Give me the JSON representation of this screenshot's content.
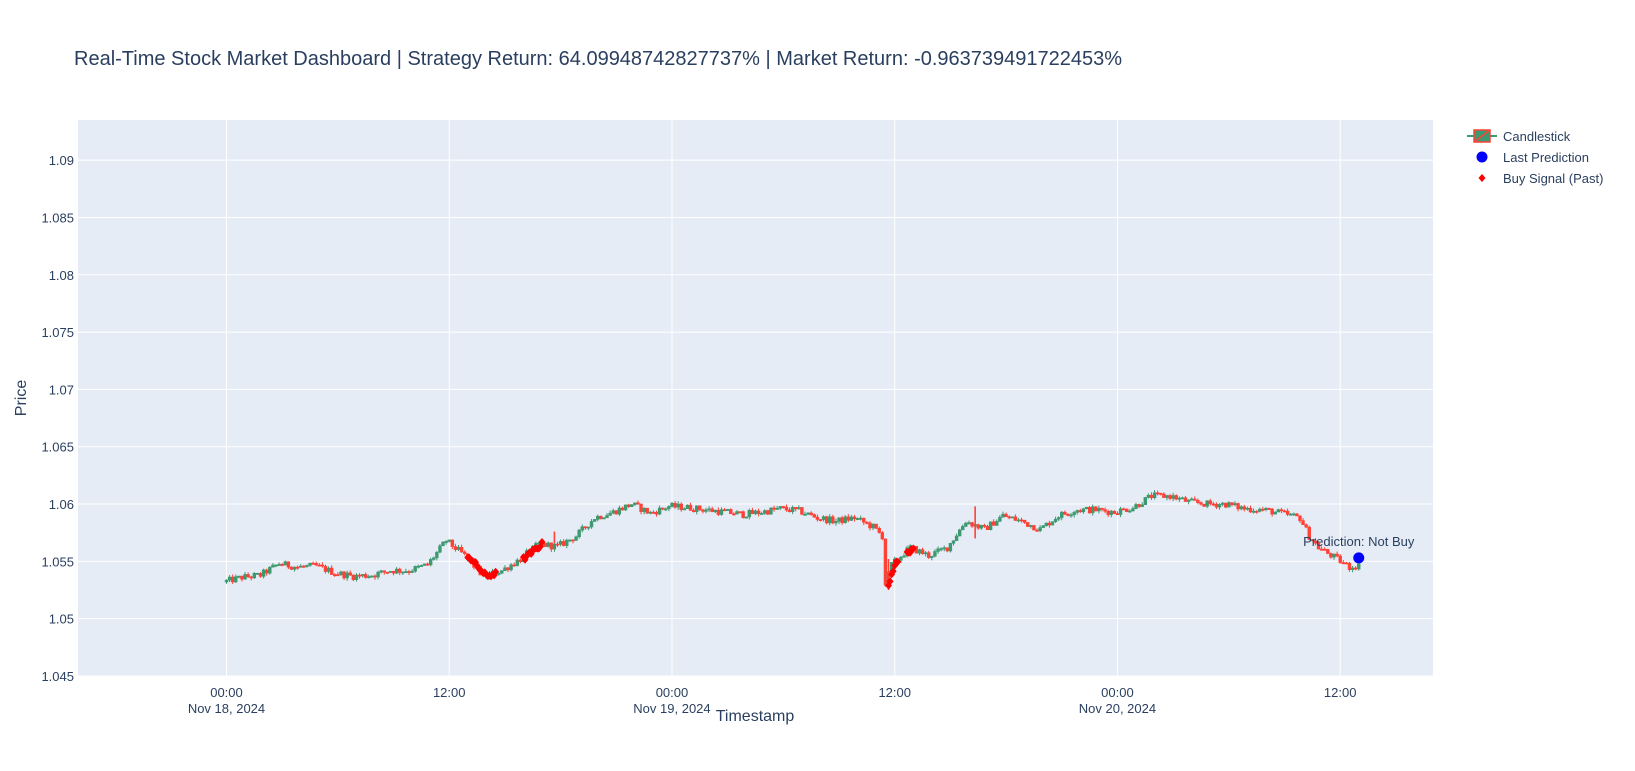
{
  "chart_data": {
    "type": "candlestick",
    "title": "Real-Time Stock Market Dashboard | Strategy Return: 64.09948742827737% | Market Return: -0.963739491722453%",
    "xlabel": "Timestamp",
    "ylabel": "Price",
    "ylim": [
      1.045,
      1.0935
    ],
    "xlim": [
      "2024-11-17 16:00",
      "2024-11-20 17:00"
    ],
    "y_ticks": [
      "1.045",
      "1.05",
      "1.055",
      "1.06",
      "1.065",
      "1.07",
      "1.075",
      "1.08",
      "1.085",
      "1.09"
    ],
    "x_ticks": [
      {
        "t": "2024-11-18 00:00",
        "time": "00:00",
        "date": "Nov 18, 2024"
      },
      {
        "t": "2024-11-18 12:00",
        "time": "12:00",
        "date": ""
      },
      {
        "t": "2024-11-19 00:00",
        "time": "00:00",
        "date": "Nov 19, 2024"
      },
      {
        "t": "2024-11-19 12:00",
        "time": "12:00",
        "date": ""
      },
      {
        "t": "2024-11-20 00:00",
        "time": "00:00",
        "date": "Nov 20, 2024"
      },
      {
        "t": "2024-11-20 12:00",
        "time": "12:00",
        "date": ""
      }
    ],
    "grid": true,
    "legend_position": "top-right",
    "colors": {
      "increasing": "#3d9970",
      "decreasing": "#ff4136",
      "prediction": "#0000ff",
      "buy_signal": "#ff0000",
      "plot_bg": "#e5ecf6"
    },
    "price_path": [
      [
        "2024-11-18 00:00",
        1.0532
      ],
      [
        "2024-11-18 01:00",
        1.0536
      ],
      [
        "2024-11-18 02:00",
        1.0538
      ],
      [
        "2024-11-18 03:00",
        1.0548
      ],
      [
        "2024-11-18 04:00",
        1.0545
      ],
      [
        "2024-11-18 05:00",
        1.0546
      ],
      [
        "2024-11-18 06:00",
        1.054
      ],
      [
        "2024-11-18 07:00",
        1.0537
      ],
      [
        "2024-11-18 08:00",
        1.0538
      ],
      [
        "2024-11-18 09:00",
        1.0542
      ],
      [
        "2024-11-18 10:00",
        1.0542
      ],
      [
        "2024-11-18 11:00",
        1.0547
      ],
      [
        "2024-11-18 12:00",
        1.0568
      ],
      [
        "2024-11-18 13:00",
        1.0555
      ],
      [
        "2024-11-18 14:00",
        1.0537
      ],
      [
        "2024-11-18 15:00",
        1.0542
      ],
      [
        "2024-11-18 16:00",
        1.0552
      ],
      [
        "2024-11-18 17:00",
        1.0565
      ],
      [
        "2024-11-18 18:00",
        1.0563
      ],
      [
        "2024-11-18 19:00",
        1.0572
      ],
      [
        "2024-11-18 20:00",
        1.0588
      ],
      [
        "2024-11-18 21:00",
        1.0593
      ],
      [
        "2024-11-18 22:00",
        1.06
      ],
      [
        "2024-11-18 23:00",
        1.0592
      ],
      [
        "2024-11-19 00:00",
        1.0598
      ],
      [
        "2024-11-19 01:00",
        1.0597
      ],
      [
        "2024-11-19 02:00",
        1.0595
      ],
      [
        "2024-11-19 03:00",
        1.0593
      ],
      [
        "2024-11-19 04:00",
        1.0591
      ],
      [
        "2024-11-19 05:00",
        1.0593
      ],
      [
        "2024-11-19 06:00",
        1.0596
      ],
      [
        "2024-11-19 07:00",
        1.0594
      ],
      [
        "2024-11-19 08:00",
        1.0588
      ],
      [
        "2024-11-19 09:00",
        1.0585
      ],
      [
        "2024-11-19 10:00",
        1.0588
      ],
      [
        "2024-11-19 11:00",
        1.058
      ],
      [
        "2024-11-19 11:30",
        1.0572
      ],
      [
        "2024-11-19 11:40",
        1.053
      ],
      [
        "2024-11-19 12:00",
        1.0547
      ],
      [
        "2024-11-19 13:00",
        1.0562
      ],
      [
        "2024-11-19 14:00",
        1.0555
      ],
      [
        "2024-11-19 15:00",
        1.0562
      ],
      [
        "2024-11-19 16:00",
        1.0585
      ],
      [
        "2024-11-19 17:00",
        1.0578
      ],
      [
        "2024-11-19 18:00",
        1.059
      ],
      [
        "2024-11-19 19:00",
        1.0585
      ],
      [
        "2024-11-19 20:00",
        1.0578
      ],
      [
        "2024-11-19 21:00",
        1.059
      ],
      [
        "2024-11-19 22:00",
        1.0595
      ],
      [
        "2024-11-19 23:00",
        1.0595
      ],
      [
        "2024-11-20 00:00",
        1.0593
      ],
      [
        "2024-11-20 01:00",
        1.0597
      ],
      [
        "2024-11-20 02:00",
        1.0607
      ],
      [
        "2024-11-20 03:00",
        1.0607
      ],
      [
        "2024-11-20 04:00",
        1.0602
      ],
      [
        "2024-11-20 05:00",
        1.06
      ],
      [
        "2024-11-20 06:00",
        1.06
      ],
      [
        "2024-11-20 07:00",
        1.0596
      ],
      [
        "2024-11-20 08:00",
        1.0595
      ],
      [
        "2024-11-20 09:00",
        1.0592
      ],
      [
        "2024-11-20 10:00",
        1.0588
      ],
      [
        "2024-11-20 10:30",
        1.0572
      ],
      [
        "2024-11-20 11:00",
        1.0562
      ],
      [
        "2024-11-20 12:00",
        1.0552
      ],
      [
        "2024-11-20 12:40",
        1.0545
      ],
      [
        "2024-11-20 13:00",
        1.0546
      ]
    ],
    "spikes": [
      {
        "t": "2024-11-19 11:40",
        "low": 1.0525,
        "high": 1.0552
      },
      {
        "t": "2024-11-18 17:40",
        "low": 1.0566,
        "high": 1.0576
      },
      {
        "t": "2024-11-19 16:20",
        "low": 1.057,
        "high": 1.0598
      }
    ],
    "buy_signal_windows": [
      [
        "2024-11-18 13:00",
        "2024-11-18 14:30"
      ],
      [
        "2024-11-18 16:00",
        "2024-11-18 17:00"
      ],
      [
        "2024-11-19 11:40",
        "2024-11-19 12:10"
      ],
      [
        "2024-11-19 12:40",
        "2024-11-19 13:00"
      ]
    ],
    "last_prediction": {
      "t": "2024-11-20 13:00",
      "y": 1.0553,
      "label": "Prediction: Not Buy"
    },
    "legend": [
      {
        "name": "Candlestick",
        "symbol": "candle"
      },
      {
        "name": "Last Prediction",
        "symbol": "circle"
      },
      {
        "name": "Buy Signal (Past)",
        "symbol": "diamond"
      }
    ]
  }
}
